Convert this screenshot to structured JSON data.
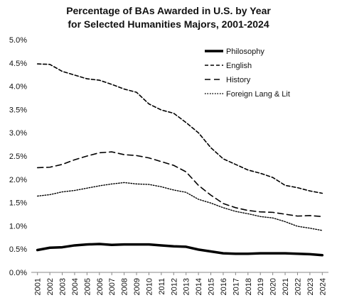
{
  "chart_data": {
    "type": "line",
    "title_lines": [
      "Percentage of BAs Awarded in U.S. by Year",
      "for Selected Humanities Majors, 2001-2024"
    ],
    "xlabel": "",
    "ylabel": "",
    "x": [
      "2001",
      "2002",
      "2003",
      "2004",
      "2005",
      "2006",
      "2007",
      "2008",
      "2009",
      "2010",
      "2011",
      "2012",
      "2013",
      "2014",
      "2015",
      "2016",
      "2017",
      "2018",
      "2019",
      "2020",
      "2021",
      "2022",
      "2023",
      "2024"
    ],
    "ylim": [
      0,
      5
    ],
    "yticks": [
      "0.0%",
      "0.5%",
      "1.0%",
      "1.5%",
      "2.0%",
      "2.5%",
      "3.0%",
      "3.5%",
      "4.0%",
      "4.5%",
      "5.0%"
    ],
    "grid": false,
    "legend_position": "top-right",
    "series": [
      {
        "name": "Philosophy",
        "style": "solid-thick",
        "color": "#000000",
        "values": [
          0.48,
          0.53,
          0.54,
          0.58,
          0.6,
          0.61,
          0.59,
          0.6,
          0.6,
          0.6,
          0.58,
          0.56,
          0.55,
          0.49,
          0.45,
          0.41,
          0.4,
          0.4,
          0.41,
          0.41,
          0.41,
          0.4,
          0.39,
          0.37
        ]
      },
      {
        "name": "English",
        "style": "dashed",
        "color": "#000000",
        "values": [
          4.48,
          4.47,
          4.32,
          4.24,
          4.16,
          4.13,
          4.04,
          3.94,
          3.87,
          3.62,
          3.49,
          3.42,
          3.22,
          3.0,
          2.68,
          2.44,
          2.32,
          2.2,
          2.13,
          2.04,
          1.87,
          1.82,
          1.75,
          1.7
        ]
      },
      {
        "name": "History",
        "style": "long-dashed",
        "color": "#000000",
        "values": [
          2.25,
          2.26,
          2.32,
          2.42,
          2.5,
          2.57,
          2.59,
          2.53,
          2.51,
          2.46,
          2.38,
          2.3,
          2.16,
          1.87,
          1.66,
          1.48,
          1.39,
          1.33,
          1.3,
          1.29,
          1.25,
          1.21,
          1.22,
          1.2
        ]
      },
      {
        "name": "Foreign Lang & Lit",
        "style": "dotted",
        "color": "#000000",
        "values": [
          1.64,
          1.67,
          1.73,
          1.76,
          1.81,
          1.86,
          1.9,
          1.93,
          1.9,
          1.89,
          1.84,
          1.77,
          1.72,
          1.57,
          1.49,
          1.39,
          1.31,
          1.26,
          1.2,
          1.17,
          1.09,
          0.99,
          0.95,
          0.9
        ]
      }
    ]
  }
}
